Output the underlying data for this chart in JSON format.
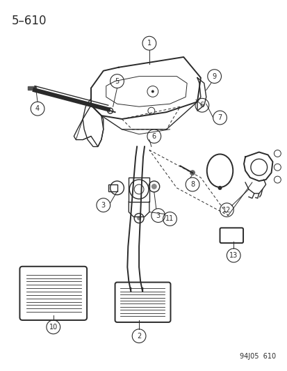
{
  "title": "5–610",
  "footer": "94J05  610",
  "bg_color": "#ffffff",
  "line_color": "#2a2a2a",
  "title_fontsize": 12,
  "footer_fontsize": 7
}
